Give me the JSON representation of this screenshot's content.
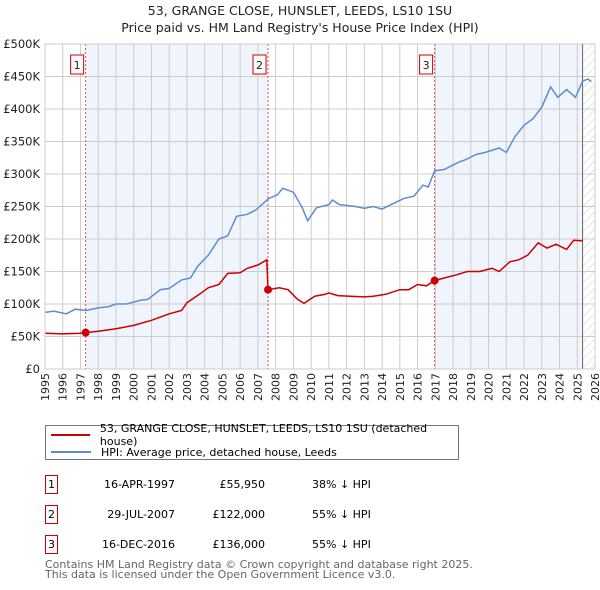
{
  "chart_data": {
    "type": "line",
    "title": "53, GRANGE CLOSE, HUNSLET, LEEDS, LS10 1SU",
    "subtitle": "Price paid vs. HM Land Registry's House Price Index (HPI)",
    "xlim": [
      1995,
      2026
    ],
    "ylim": [
      0,
      500000
    ],
    "x_ticks": [
      "1995",
      "1996",
      "1997",
      "1998",
      "1999",
      "2000",
      "2001",
      "2002",
      "2003",
      "2004",
      "2005",
      "2006",
      "2007",
      "2008",
      "2009",
      "2010",
      "2011",
      "2012",
      "2013",
      "2014",
      "2015",
      "2016",
      "2017",
      "2018",
      "2019",
      "2020",
      "2021",
      "2022",
      "2023",
      "2024",
      "2025",
      "2026"
    ],
    "y_ticks": [
      {
        "v": 0,
        "label": "£0"
      },
      {
        "v": 50000,
        "label": "£50K"
      },
      {
        "v": 100000,
        "label": "£100K"
      },
      {
        "v": 150000,
        "label": "£150K"
      },
      {
        "v": 200000,
        "label": "£200K"
      },
      {
        "v": 250000,
        "label": "£250K"
      },
      {
        "v": 300000,
        "label": "£300K"
      },
      {
        "v": 350000,
        "label": "£350K"
      },
      {
        "v": 400000,
        "label": "£400K"
      },
      {
        "v": 450000,
        "label": "£450K"
      },
      {
        "v": 500000,
        "label": "£500K"
      }
    ],
    "grid": true,
    "shaded_ranges": [
      [
        1997.29,
        2007.57
      ],
      [
        2016.96,
        2025.3
      ]
    ],
    "hatched_from": 2025.3,
    "series": [
      {
        "name": "53, GRANGE CLOSE, HUNSLET, LEEDS, LS10 1SU (detached house)",
        "color": "#cc0000",
        "points": [
          [
            1995,
            55000
          ],
          [
            1996,
            54000
          ],
          [
            1997,
            55000
          ],
          [
            1997.29,
            55950
          ],
          [
            1998,
            58000
          ],
          [
            1999,
            62000
          ],
          [
            2000,
            67000
          ],
          [
            2001,
            75000
          ],
          [
            2002,
            85000
          ],
          [
            2002.7,
            90000
          ],
          [
            2003,
            102000
          ],
          [
            2003.7,
            115000
          ],
          [
            2004.2,
            125000
          ],
          [
            2004.8,
            130000
          ],
          [
            2005.3,
            147000
          ],
          [
            2006,
            148000
          ],
          [
            2006.4,
            155000
          ],
          [
            2007,
            160000
          ],
          [
            2007.5,
            168000
          ],
          [
            2007.57,
            122000
          ],
          [
            2008.2,
            125000
          ],
          [
            2008.7,
            122000
          ],
          [
            2009.2,
            108000
          ],
          [
            2009.6,
            101000
          ],
          [
            2010.2,
            112000
          ],
          [
            2010.8,
            115000
          ],
          [
            2011,
            117000
          ],
          [
            2011.5,
            113000
          ],
          [
            2012.2,
            112000
          ],
          [
            2013,
            111000
          ],
          [
            2013.5,
            112000
          ],
          [
            2014.2,
            115000
          ],
          [
            2015,
            122000
          ],
          [
            2015.5,
            122000
          ],
          [
            2016,
            130000
          ],
          [
            2016.5,
            128000
          ],
          [
            2016.96,
            136000
          ],
          [
            2017.5,
            140000
          ],
          [
            2018.2,
            145000
          ],
          [
            2018.8,
            150000
          ],
          [
            2019.5,
            150000
          ],
          [
            2020.2,
            155000
          ],
          [
            2020.6,
            150000
          ],
          [
            2021.2,
            165000
          ],
          [
            2021.7,
            168000
          ],
          [
            2022.2,
            175000
          ],
          [
            2022.8,
            194000
          ],
          [
            2023.3,
            186000
          ],
          [
            2023.8,
            192000
          ],
          [
            2024.4,
            184000
          ],
          [
            2024.8,
            198000
          ],
          [
            2025.3,
            197000
          ]
        ]
      },
      {
        "name": "HPI: Average price, detached house, Leeds",
        "color": "#5b8ed0",
        "points": [
          [
            1995,
            87000
          ],
          [
            1995.5,
            89000
          ],
          [
            1996.2,
            85000
          ],
          [
            1996.7,
            92000
          ],
          [
            1997.3,
            90000
          ],
          [
            1998,
            94000
          ],
          [
            1998.6,
            96000
          ],
          [
            1999,
            100000
          ],
          [
            1999.6,
            100000
          ],
          [
            2000.4,
            106000
          ],
          [
            2000.8,
            107000
          ],
          [
            2001.5,
            122000
          ],
          [
            2002,
            124000
          ],
          [
            2002.7,
            137000
          ],
          [
            2003.2,
            140000
          ],
          [
            2003.6,
            158000
          ],
          [
            2004.2,
            175000
          ],
          [
            2004.8,
            200000
          ],
          [
            2005.3,
            205000
          ],
          [
            2005.8,
            235000
          ],
          [
            2006.4,
            238000
          ],
          [
            2006.9,
            245000
          ],
          [
            2007.6,
            262000
          ],
          [
            2008.1,
            268000
          ],
          [
            2008.4,
            278000
          ],
          [
            2009,
            272000
          ],
          [
            2009.5,
            248000
          ],
          [
            2009.8,
            228000
          ],
          [
            2010.3,
            248000
          ],
          [
            2011,
            253000
          ],
          [
            2011.2,
            260000
          ],
          [
            2011.6,
            253000
          ],
          [
            2012.5,
            250000
          ],
          [
            2013,
            247000
          ],
          [
            2013.5,
            250000
          ],
          [
            2014,
            246000
          ],
          [
            2014.5,
            253000
          ],
          [
            2015.2,
            262000
          ],
          [
            2015.8,
            266000
          ],
          [
            2016.3,
            283000
          ],
          [
            2016.6,
            280000
          ],
          [
            2016.96,
            305000
          ],
          [
            2017.5,
            307000
          ],
          [
            2018.3,
            318000
          ],
          [
            2018.7,
            322000
          ],
          [
            2019.3,
            330000
          ],
          [
            2019.8,
            333000
          ],
          [
            2020.6,
            340000
          ],
          [
            2021,
            333000
          ],
          [
            2021.5,
            358000
          ],
          [
            2022,
            375000
          ],
          [
            2022.5,
            385000
          ],
          [
            2023,
            403000
          ],
          [
            2023.5,
            434000
          ],
          [
            2023.9,
            418000
          ],
          [
            2024.4,
            430000
          ],
          [
            2024.9,
            418000
          ],
          [
            2025.3,
            443000
          ],
          [
            2025.6,
            446000
          ],
          [
            2025.8,
            442000
          ]
        ]
      }
    ],
    "sales": [
      {
        "n": "1",
        "x": 1997.29,
        "price": 55950
      },
      {
        "n": "2",
        "x": 2007.57,
        "price": 122000
      },
      {
        "n": "3",
        "x": 2016.96,
        "price": 136000
      }
    ]
  },
  "legend": {
    "property": "53, GRANGE CLOSE, HUNSLET, LEEDS, LS10 1SU (detached house)",
    "hpi": "HPI: Average price, detached house, Leeds"
  },
  "table": [
    {
      "n": "1",
      "date": "16-APR-1997",
      "price": "£55,950",
      "hpi": "38% ↓ HPI"
    },
    {
      "n": "2",
      "date": "29-JUL-2007",
      "price": "£122,000",
      "hpi": "55% ↓ HPI"
    },
    {
      "n": "3",
      "date": "16-DEC-2016",
      "price": "£136,000",
      "hpi": "55% ↓ HPI"
    }
  ],
  "footer": {
    "line1": "Contains HM Land Registry data © Crown copyright and database right 2025.",
    "line2": "This data is licensed under the Open Government Licence v3.0."
  }
}
